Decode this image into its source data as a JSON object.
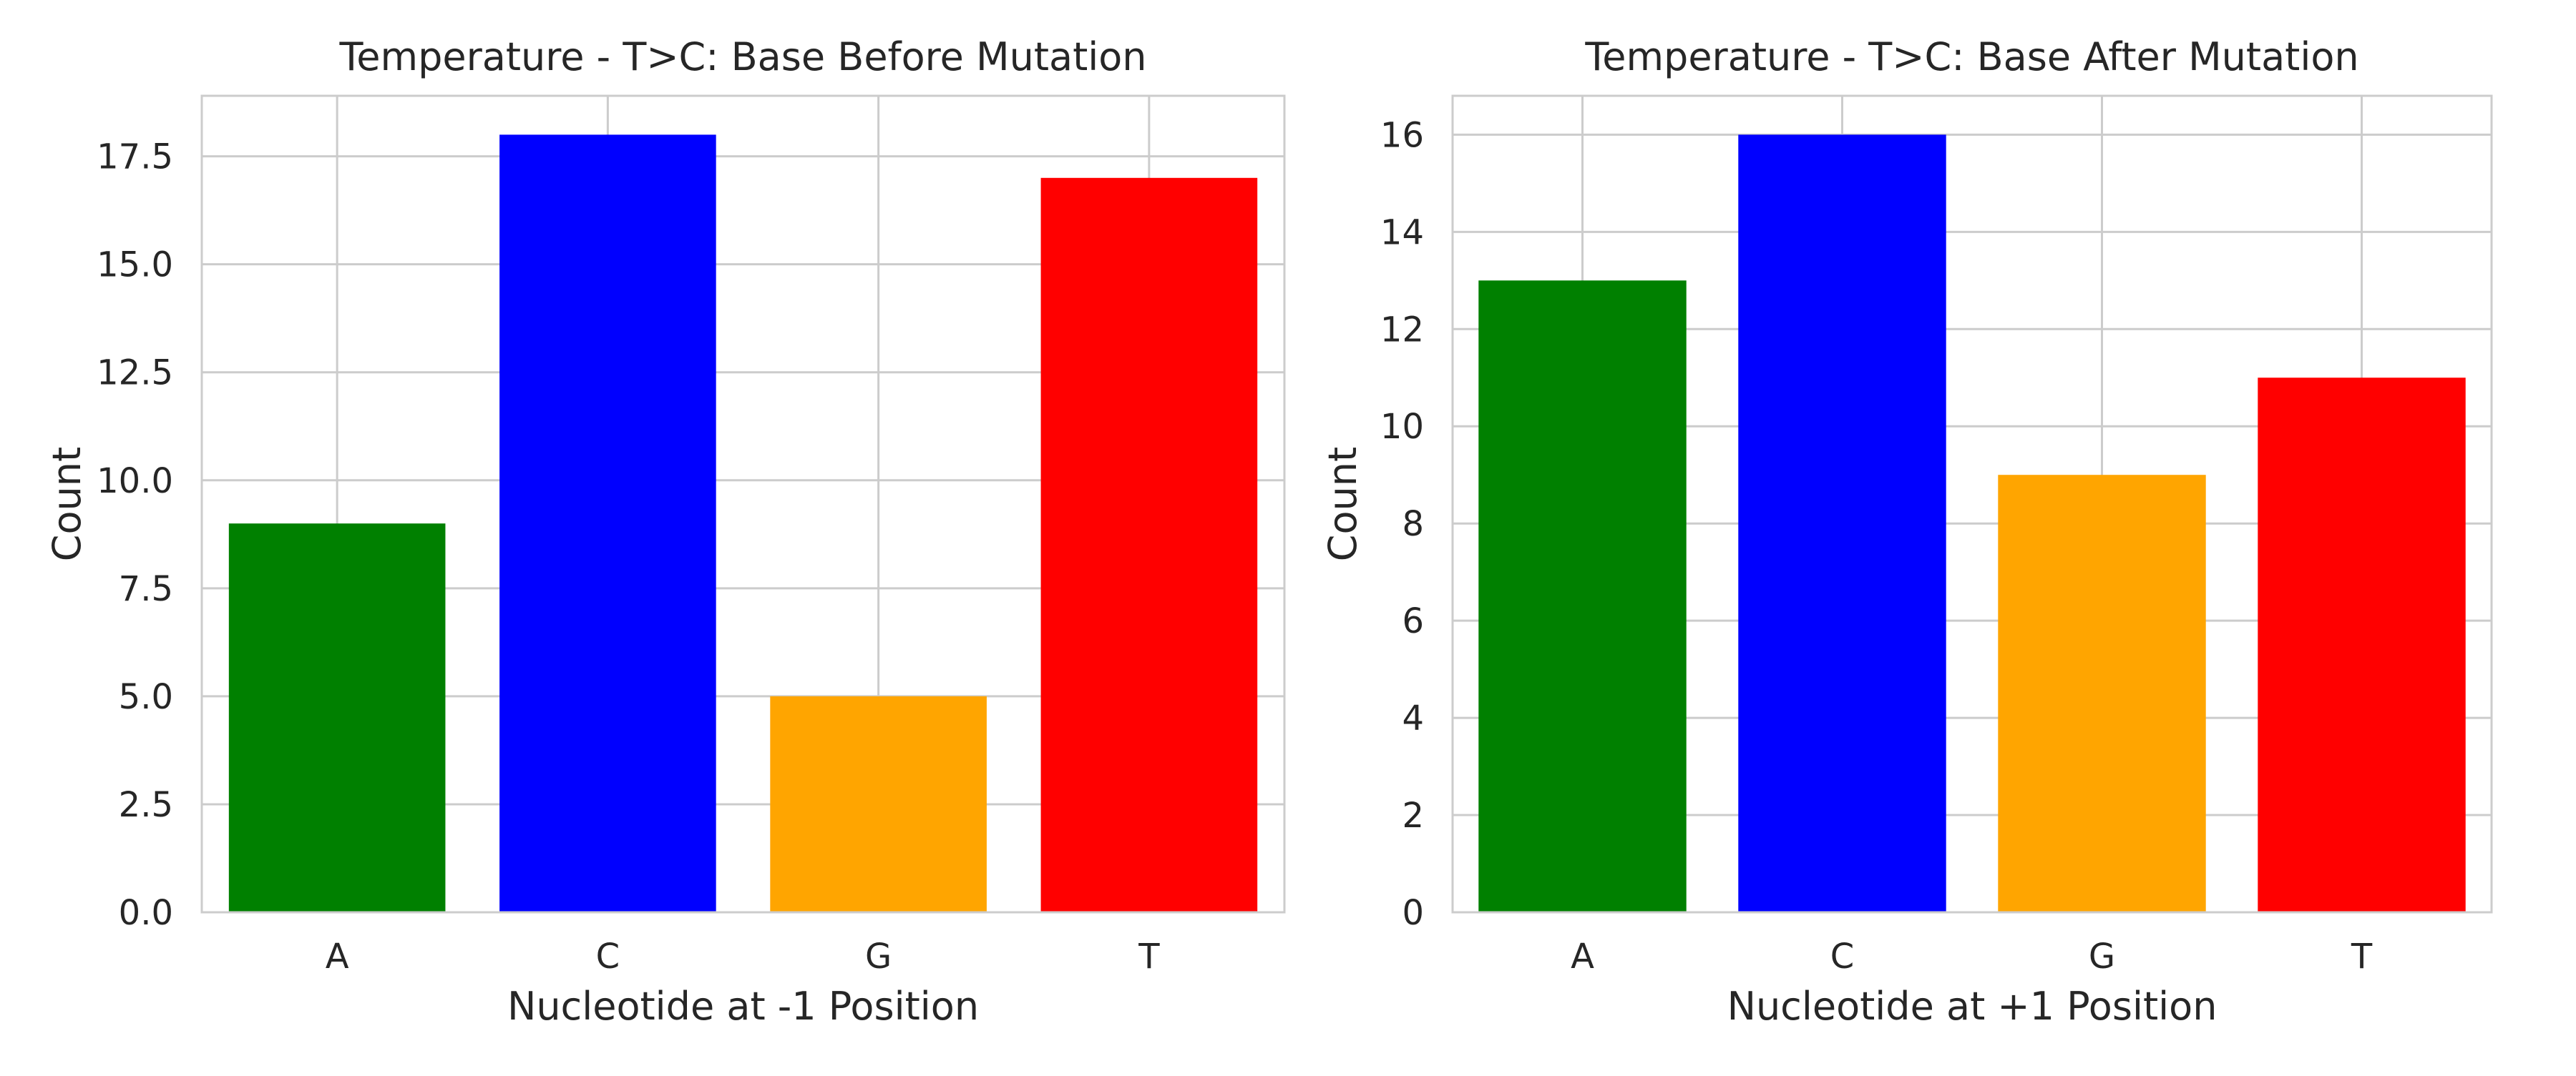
{
  "colors": {
    "A": "#008000",
    "C": "#0000ff",
    "G": "#ffa500",
    "T": "#ff0000",
    "grid": "#cccccc",
    "frame": "#cccccc",
    "text": "#262626"
  },
  "chart_data": [
    {
      "type": "bar",
      "title": "Temperature - T>C: Base Before Mutation",
      "xlabel": "Nucleotide at -1 Position",
      "ylabel": "Count",
      "categories": [
        "A",
        "C",
        "G",
        "T"
      ],
      "values": [
        9,
        18,
        5,
        17
      ],
      "ylim": [
        0,
        18.9
      ],
      "yticks": [
        0.0,
        2.5,
        5.0,
        7.5,
        10.0,
        12.5,
        15.0,
        17.5
      ],
      "ytick_labels": [
        "0.0",
        "2.5",
        "5.0",
        "7.5",
        "10.0",
        "12.5",
        "15.0",
        "17.5"
      ],
      "grid": true,
      "legend": "none"
    },
    {
      "type": "bar",
      "title": "Temperature - T>C: Base After Mutation",
      "xlabel": "Nucleotide at +1 Position",
      "ylabel": "Count",
      "categories": [
        "A",
        "C",
        "G",
        "T"
      ],
      "values": [
        13,
        16,
        9,
        11
      ],
      "ylim": [
        0,
        16.8
      ],
      "yticks": [
        0,
        2,
        4,
        6,
        8,
        10,
        12,
        14,
        16
      ],
      "ytick_labels": [
        "0",
        "2",
        "4",
        "6",
        "8",
        "10",
        "12",
        "14",
        "16"
      ],
      "grid": true,
      "legend": "none"
    }
  ]
}
